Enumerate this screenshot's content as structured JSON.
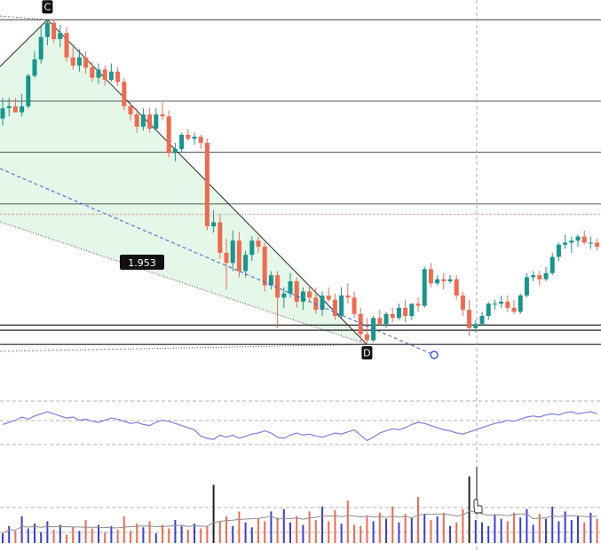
{
  "chart_data": [
    {
      "type": "candlestick",
      "pattern_points": [
        {
          "label": "C",
          "bar": 7,
          "price": 41.5
        },
        {
          "label": "D",
          "bar": 57,
          "price": 9.6
        }
      ],
      "pattern_ratio_label": "1.953",
      "horizontal_levels": [
        41.5,
        33.5,
        28.5,
        23.4,
        11.5,
        11.0,
        9.6
      ],
      "candles": [
        [
          31.8,
          33.8,
          31.1,
          32.8
        ],
        [
          32.8,
          33.8,
          32.0,
          33.0
        ],
        [
          33.0,
          33.8,
          32.4,
          32.4
        ],
        [
          32.4,
          34.2,
          32.0,
          33.0
        ],
        [
          33.0,
          36.2,
          32.8,
          36.0
        ],
        [
          36.0,
          38.4,
          35.8,
          37.6
        ],
        [
          37.6,
          40.8,
          37.2,
          39.8
        ],
        [
          39.8,
          41.5,
          39.0,
          41.2
        ],
        [
          41.2,
          41.5,
          39.2,
          39.6
        ],
        [
          39.6,
          41.0,
          38.8,
          40.2
        ],
        [
          40.2,
          40.8,
          37.4,
          37.8
        ],
        [
          37.8,
          38.8,
          36.6,
          37.0
        ],
        [
          37.0,
          38.6,
          36.4,
          37.8
        ],
        [
          37.8,
          38.4,
          36.2,
          36.8
        ],
        [
          36.8,
          37.4,
          35.4,
          35.8
        ],
        [
          35.8,
          37.2,
          35.2,
          36.6
        ],
        [
          36.6,
          37.0,
          35.0,
          35.6
        ],
        [
          35.6,
          37.2,
          35.4,
          36.4
        ],
        [
          36.4,
          36.8,
          35.0,
          35.4
        ],
        [
          35.4,
          35.8,
          32.6,
          33.0
        ],
        [
          33.0,
          33.4,
          31.6,
          32.2
        ],
        [
          32.2,
          32.8,
          30.4,
          31.0
        ],
        [
          31.0,
          32.8,
          30.6,
          32.2
        ],
        [
          32.2,
          32.8,
          30.4,
          30.8
        ],
        [
          30.8,
          32.8,
          30.6,
          32.2
        ],
        [
          32.2,
          33.4,
          31.6,
          32.0
        ],
        [
          32.0,
          32.6,
          28.0,
          28.4
        ],
        [
          28.4,
          29.4,
          27.6,
          28.8
        ],
        [
          28.8,
          30.4,
          28.4,
          30.2
        ],
        [
          30.2,
          30.8,
          29.6,
          29.8
        ],
        [
          29.8,
          30.4,
          29.2,
          30.0
        ],
        [
          30.0,
          30.2,
          28.8,
          29.4
        ],
        [
          29.4,
          29.8,
          20.8,
          21.2
        ],
        [
          21.2,
          22.8,
          20.6,
          21.6
        ],
        [
          21.6,
          22.4,
          18.0,
          18.6
        ],
        [
          18.6,
          20.0,
          15.0,
          17.6
        ],
        [
          17.6,
          20.8,
          16.8,
          19.8
        ],
        [
          19.8,
          20.6,
          16.2,
          16.8
        ],
        [
          16.8,
          18.8,
          16.2,
          18.4
        ],
        [
          18.4,
          20.2,
          17.8,
          19.8
        ],
        [
          19.8,
          20.2,
          18.6,
          19.2
        ],
        [
          19.2,
          19.6,
          14.8,
          15.4
        ],
        [
          15.4,
          16.8,
          15.0,
          16.4
        ],
        [
          16.4,
          16.8,
          11.2,
          14.2
        ],
        [
          14.2,
          15.2,
          13.2,
          14.6
        ],
        [
          14.6,
          16.6,
          14.2,
          15.8
        ],
        [
          15.8,
          16.2,
          13.2,
          13.8
        ],
        [
          13.8,
          15.2,
          13.0,
          14.8
        ],
        [
          14.8,
          15.4,
          13.8,
          14.2
        ],
        [
          14.2,
          15.2,
          12.6,
          13.0
        ],
        [
          13.0,
          14.8,
          12.4,
          14.4
        ],
        [
          14.4,
          15.2,
          13.8,
          14.0
        ],
        [
          14.0,
          14.6,
          12.0,
          12.4
        ],
        [
          12.4,
          15.2,
          12.2,
          14.4
        ],
        [
          14.4,
          15.6,
          13.6,
          14.2
        ],
        [
          14.2,
          14.8,
          12.2,
          12.6
        ],
        [
          12.6,
          13.2,
          9.8,
          10.6
        ],
        [
          10.6,
          12.2,
          9.6,
          10.0
        ],
        [
          10.0,
          12.4,
          9.8,
          12.2
        ],
        [
          12.2,
          13.0,
          11.4,
          11.6
        ],
        [
          11.6,
          12.8,
          11.2,
          12.6
        ],
        [
          12.6,
          13.2,
          11.8,
          12.2
        ],
        [
          12.2,
          13.6,
          12.0,
          13.2
        ],
        [
          13.2,
          14.0,
          11.8,
          12.4
        ],
        [
          12.4,
          13.6,
          12.0,
          13.6
        ],
        [
          13.6,
          14.2,
          12.8,
          13.4
        ],
        [
          13.4,
          17.2,
          13.2,
          17.0
        ],
        [
          17.0,
          17.6,
          15.2,
          15.6
        ],
        [
          15.6,
          16.4,
          15.4,
          16.0
        ],
        [
          16.0,
          16.6,
          15.0,
          15.8
        ],
        [
          15.8,
          16.4,
          15.6,
          16.0
        ],
        [
          16.0,
          16.4,
          14.0,
          14.4
        ],
        [
          14.4,
          14.8,
          12.4,
          13.0
        ],
        [
          13.0,
          14.0,
          10.4,
          11.2
        ],
        [
          11.2,
          12.0,
          10.8,
          11.6
        ],
        [
          11.6,
          12.8,
          11.4,
          12.4
        ],
        [
          12.4,
          13.8,
          12.0,
          13.6
        ],
        [
          13.6,
          14.0,
          13.0,
          13.6
        ],
        [
          13.6,
          14.4,
          13.2,
          13.8
        ],
        [
          13.8,
          14.4,
          12.8,
          13.2
        ],
        [
          13.2,
          14.0,
          12.6,
          12.8
        ],
        [
          12.8,
          14.6,
          12.6,
          14.4
        ],
        [
          14.4,
          16.6,
          14.2,
          16.2
        ],
        [
          16.2,
          16.8,
          15.8,
          16.4
        ],
        [
          16.4,
          16.8,
          15.4,
          16.0
        ],
        [
          16.0,
          17.2,
          15.8,
          16.6
        ],
        [
          16.6,
          18.6,
          16.4,
          18.2
        ],
        [
          18.2,
          19.6,
          17.8,
          19.4
        ],
        [
          19.4,
          20.4,
          19.0,
          19.6
        ],
        [
          19.6,
          20.2,
          18.6,
          19.8
        ],
        [
          19.8,
          20.4,
          19.2,
          20.2
        ],
        [
          20.2,
          20.8,
          19.4,
          19.6
        ],
        [
          19.6,
          20.2,
          19.0,
          19.6
        ],
        [
          19.6,
          20.0,
          18.8,
          19.2
        ]
      ],
      "candle_colors": {
        "up": "#16968d",
        "down": "#f06a50"
      },
      "pattern_fill": "#dff6e4",
      "pattern_edge": "#2e2e2e",
      "projection_color": "#3a5ed8"
    },
    {
      "type": "line",
      "name": "",
      "values": [
        48,
        50,
        52,
        55,
        53,
        56,
        58,
        60,
        58,
        56,
        54,
        55,
        52,
        53,
        51,
        50,
        52,
        54,
        53,
        51,
        49,
        50,
        48,
        47,
        50,
        52,
        51,
        49,
        47,
        45,
        43,
        37,
        35,
        34,
        38,
        36,
        38,
        35,
        37,
        39,
        40,
        42,
        40,
        36,
        35,
        38,
        40,
        38,
        39,
        37,
        36,
        38,
        40,
        39,
        41,
        43,
        38,
        33,
        36,
        40,
        42,
        44,
        43,
        45,
        48,
        50,
        49,
        47,
        45,
        43,
        42,
        40,
        39,
        41,
        43,
        45,
        47,
        49,
        50,
        52,
        51,
        53,
        55,
        56,
        55,
        57,
        58,
        57,
        59,
        60,
        58,
        59,
        60,
        58
      ],
      "ylim": [
        20,
        80
      ],
      "color": "#7d7ddb"
    },
    {
      "type": "bar",
      "name": "",
      "values": [
        8,
        14,
        10,
        22,
        12,
        16,
        9,
        18,
        11,
        15,
        7,
        13,
        10,
        19,
        12,
        15,
        9,
        14,
        11,
        22,
        10,
        16,
        13,
        18,
        8,
        15,
        12,
        19,
        14,
        11,
        16,
        12,
        14,
        48,
        18,
        22,
        14,
        26,
        17,
        13,
        20,
        18,
        26,
        21,
        28,
        17,
        22,
        15,
        26,
        19,
        30,
        18,
        27,
        16,
        35,
        15,
        14,
        22,
        18,
        25,
        20,
        30,
        17,
        24,
        21,
        38,
        24,
        19,
        22,
        25,
        14,
        17,
        28,
        55,
        19,
        17,
        14,
        23,
        20,
        18,
        25,
        21,
        28,
        15,
        24,
        20,
        30,
        18,
        26,
        19,
        22,
        17,
        25,
        20
      ],
      "colors": [
        "#3c3cdc",
        "#f06a50",
        "#8080a0"
      ],
      "ylim": [
        0,
        60
      ],
      "ma_color": "#8c8c8c",
      "dashed_level": 16
    }
  ]
}
